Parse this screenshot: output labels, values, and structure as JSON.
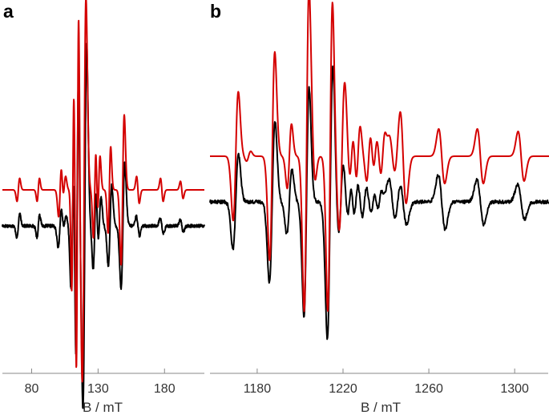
{
  "chart_data": [
    {
      "type": "line",
      "panel_label": "a",
      "xlabel": "B / mT",
      "ylabel": "",
      "xlim": [
        58,
        210
      ],
      "xticks": [
        80,
        130,
        180
      ],
      "grid": false,
      "colors": {
        "experimental": "#000000",
        "simulated": "#d40000"
      },
      "series": [
        {
          "key": "simulated",
          "baseline": 0,
          "peaks": [
            [
              70,
              12,
              1.0
            ],
            [
              85,
              12,
              0.9
            ],
            [
              101.4,
              28,
              1.1
            ],
            [
              104.5,
              14,
              1.1
            ],
            [
              111,
              105,
              0.85
            ],
            [
              114.5,
              190,
              0.9
            ],
            [
              119.5,
              200,
              1.4
            ],
            [
              127.5,
              50,
              1.0
            ],
            [
              130.5,
              35,
              1.0
            ],
            [
              138.5,
              45,
              1.0
            ],
            [
              148.5,
              78,
              1.2
            ],
            [
              160,
              -14,
              1.0
            ],
            [
              178,
              -12,
              1.0
            ],
            [
              193,
              -9,
              1.0
            ]
          ]
        },
        {
          "key": "experimental",
          "baseline": -45,
          "noise": 1.6,
          "peaks": [
            [
              70,
              12,
              1.1
            ],
            [
              85,
              12,
              1.0
            ],
            [
              101.3,
              22,
              1.3
            ],
            [
              104.8,
              10,
              1.2
            ],
            [
              110.7,
              65,
              1.1
            ],
            [
              114.2,
              150,
              1.0
            ],
            [
              120,
              190,
              1.4
            ],
            [
              127.5,
              45,
              1.2
            ],
            [
              131,
              30,
              1.2
            ],
            [
              139,
              42,
              1.3
            ],
            [
              148.7,
              65,
              1.4
            ],
            [
              160,
              -10,
              1.2
            ],
            [
              178,
              -8,
              1.2
            ],
            [
              193,
              -6,
              1.2
            ]
          ]
        }
      ]
    },
    {
      "type": "line",
      "panel_label": "b",
      "xlabel": "B / mT",
      "ylabel": "",
      "xlim": [
        1158,
        1316
      ],
      "xticks": [
        1180,
        1220,
        1260,
        1300
      ],
      "grid": false,
      "colors": {
        "experimental": "#000000",
        "simulated": "#d40000"
      },
      "series": [
        {
          "key": "simulated",
          "baseline": 0,
          "peaks": [
            [
              1170,
              52,
              1.2
            ],
            [
              1176,
              4,
              1.0
            ],
            [
              1187,
              84,
              1.2
            ],
            [
              1195,
              26,
              1.0
            ],
            [
              1203,
              125,
              1.1
            ],
            [
              1206,
              -20,
              1.0
            ],
            [
              1214,
              125,
              1.1
            ],
            [
              1219.5,
              60,
              1.3
            ],
            [
              1224,
              20,
              1.0
            ],
            [
              1227,
              24,
              1.0
            ],
            [
              1232,
              20,
              1.0
            ],
            [
              1235,
              14,
              1.0
            ],
            [
              1238.5,
              16,
              1.0
            ],
            [
              1243,
              -16,
              1.4
            ],
            [
              1248,
              -38,
              1.4
            ],
            [
              1266,
              -22,
              1.4
            ],
            [
              1284,
              -22,
              1.4
            ],
            [
              1303,
              -20,
              1.4
            ]
          ]
        },
        {
          "key": "experimental",
          "baseline": -28,
          "noise": 1.4,
          "peaks": [
            [
              1170,
              38,
              1.3
            ],
            [
              1187,
              65,
              1.3
            ],
            [
              1195,
              26,
              1.2
            ],
            [
              1203,
              92,
              1.2
            ],
            [
              1214,
              110,
              1.3
            ],
            [
              1219,
              30,
              1.2
            ],
            [
              1223,
              14,
              1.0
            ],
            [
              1226,
              14,
              1.0
            ],
            [
              1230,
              12,
              1.0
            ],
            [
              1234,
              8,
              1.0
            ],
            [
              1237,
              8,
              1.0
            ],
            [
              1243,
              -18,
              1.6
            ],
            [
              1248,
              -18,
              1.6
            ],
            [
              1266,
              -22,
              1.6
            ],
            [
              1284,
              -18,
              1.6
            ],
            [
              1303,
              -14,
              1.6
            ]
          ]
        }
      ]
    }
  ]
}
